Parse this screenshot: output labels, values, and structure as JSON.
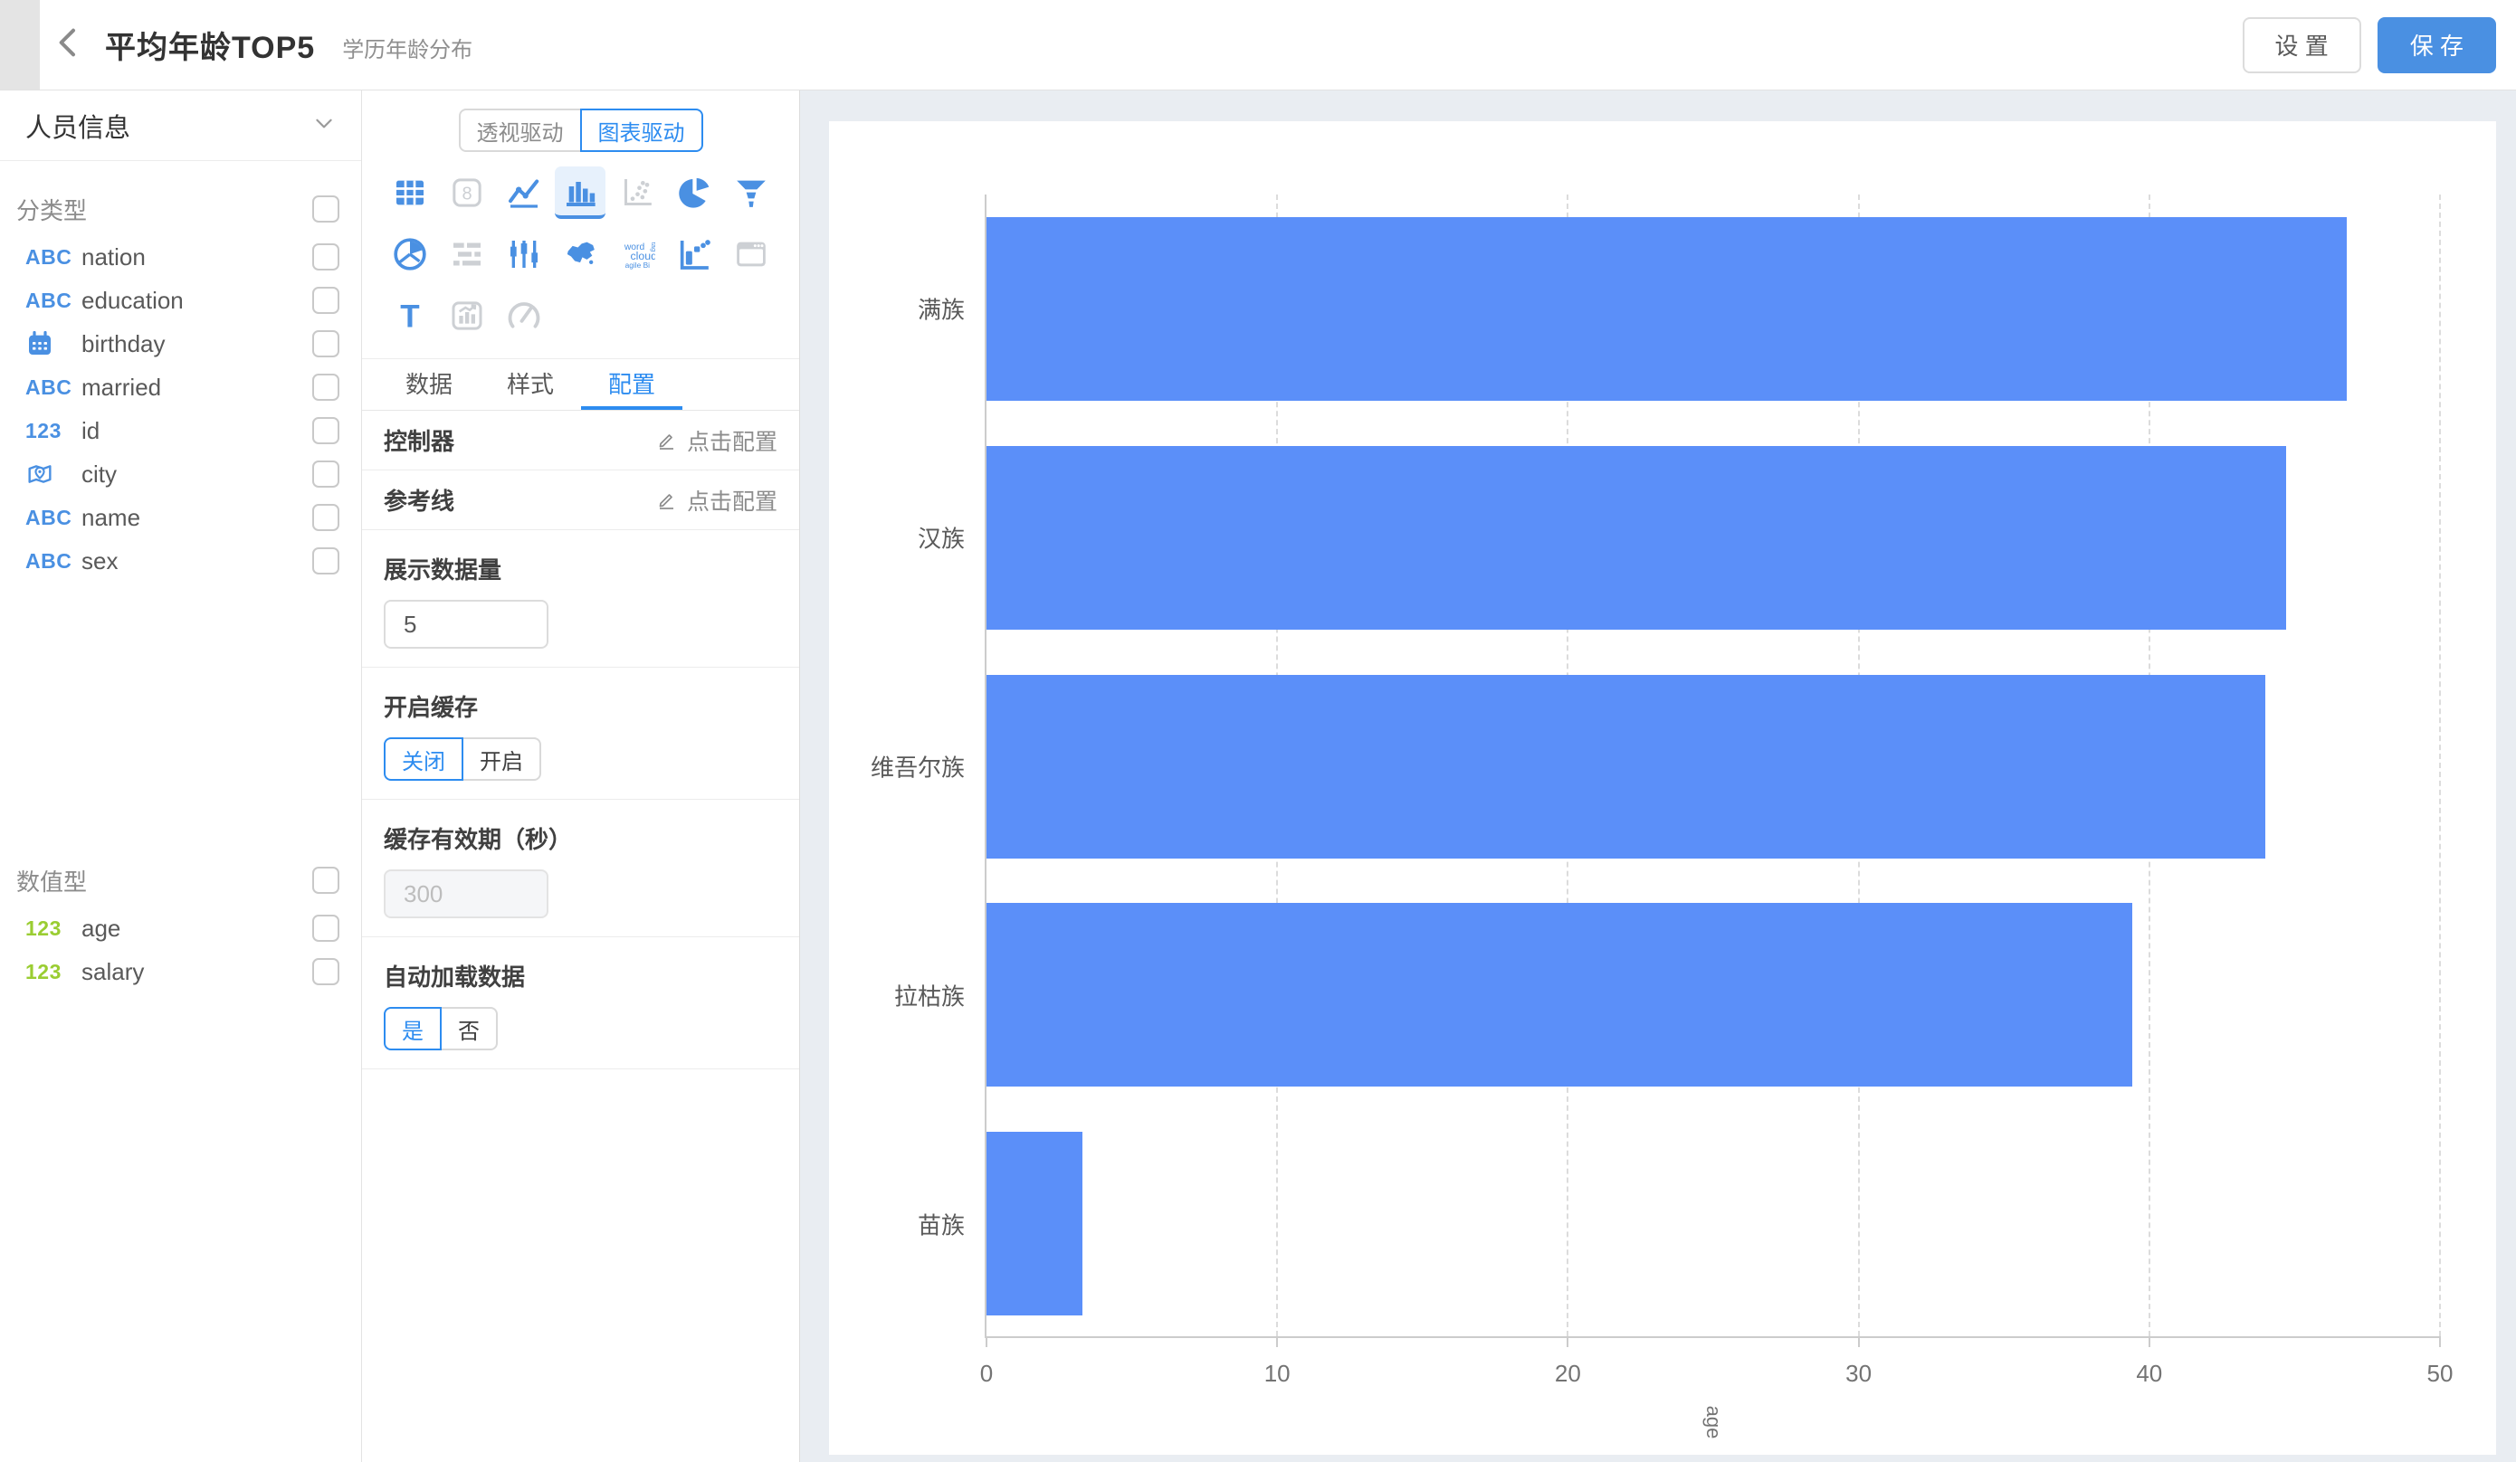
{
  "header": {
    "title": "平均年龄TOP5",
    "subtitle": "学历年龄分布",
    "settings_label": "设 置",
    "save_label": "保 存"
  },
  "sidebar": {
    "dataset_name": "人员信息",
    "sections": [
      {
        "label": "分类型",
        "fields": [
          {
            "icon": "abc-blue",
            "name": "nation"
          },
          {
            "icon": "abc-blue",
            "name": "education"
          },
          {
            "icon": "calendar",
            "name": "birthday"
          },
          {
            "icon": "abc-blue",
            "name": "married"
          },
          {
            "icon": "123-blue",
            "name": "id"
          },
          {
            "icon": "map-pin",
            "name": "city"
          },
          {
            "icon": "abc-blue",
            "name": "name"
          },
          {
            "icon": "abc-blue",
            "name": "sex"
          }
        ]
      },
      {
        "label": "数值型",
        "fields": [
          {
            "icon": "123-green",
            "name": "age"
          },
          {
            "icon": "123-green",
            "name": "salary"
          }
        ]
      }
    ]
  },
  "panel": {
    "mode_toggle": {
      "options": [
        "透视驱动",
        "图表驱动"
      ],
      "active": 1
    },
    "chart_types": [
      {
        "icon": "table",
        "enabled": true
      },
      {
        "icon": "number-card",
        "enabled": false
      },
      {
        "icon": "line-chart",
        "enabled": true
      },
      {
        "icon": "bar-chart",
        "enabled": true,
        "selected": true
      },
      {
        "icon": "scatter-chart",
        "enabled": false
      },
      {
        "icon": "pie-chart",
        "enabled": true
      },
      {
        "icon": "funnel-chart",
        "enabled": true
      },
      {
        "icon": "rose-chart",
        "enabled": true
      },
      {
        "icon": "gantt-chart",
        "enabled": false
      },
      {
        "icon": "candlestick-chart",
        "enabled": true
      },
      {
        "icon": "china-map",
        "enabled": true
      },
      {
        "icon": "word-cloud",
        "enabled": true
      },
      {
        "icon": "waterfall-chart",
        "enabled": true
      },
      {
        "icon": "iframe-window",
        "enabled": false
      },
      {
        "icon": "text-label",
        "enabled": true
      },
      {
        "icon": "mix-chart",
        "enabled": false
      },
      {
        "icon": "gauge-chart",
        "enabled": false
      }
    ],
    "tabs": {
      "items": [
        "数据",
        "样式",
        "配置"
      ],
      "active": 2
    },
    "config_rows": [
      {
        "label": "控制器",
        "action": "点击配置"
      },
      {
        "label": "参考线",
        "action": "点击配置"
      }
    ],
    "display_count": {
      "label": "展示数据量",
      "value": "5"
    },
    "cache": {
      "label": "开启缓存",
      "options": [
        "关闭",
        "开启"
      ],
      "active": 0
    },
    "cache_ttl": {
      "label": "缓存有效期（秒）",
      "value": "300",
      "disabled": true
    },
    "autoload": {
      "label": "自动加载数据",
      "options": [
        "是",
        "否"
      ],
      "active": 0
    }
  },
  "chart_data": {
    "type": "bar",
    "orientation": "horizontal",
    "categories": [
      "满族",
      "汉族",
      "维吾尔族",
      "拉枯族",
      "苗族"
    ],
    "values": [
      46.8,
      44.7,
      44.0,
      39.4,
      3.3
    ],
    "xlabel": "age",
    "ylabel": "",
    "xlim": [
      0,
      50
    ],
    "xticks": [
      0,
      10,
      20,
      30,
      40,
      50
    ],
    "grid": "dashed-vertical",
    "legend": "none",
    "bar_color": "#5b8ff9"
  },
  "colors": {
    "accent": "#2d8cf0",
    "save_button": "#4a90e2",
    "bar_fill": "#5b8ff9",
    "field_icon_blue": "#4a90e2",
    "field_icon_green": "#9acd32",
    "canvas_bg": "#e9edf2"
  }
}
